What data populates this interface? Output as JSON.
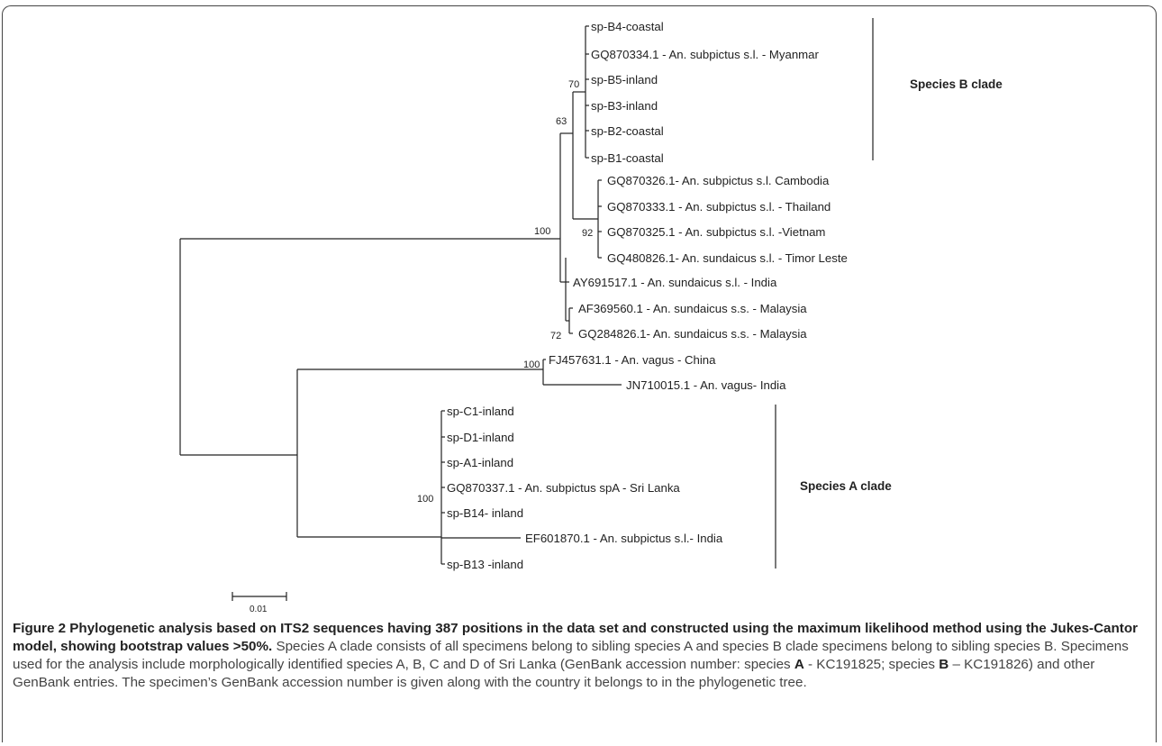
{
  "tree": {
    "leaves": [
      "sp-B4-coastal",
      "GQ870334.1 - An. subpictus s.l. - Myanmar",
      "sp-B5-inland",
      "sp-B3-inland",
      "sp-B2-coastal",
      "sp-B1-coastal",
      "GQ870326.1- An. subpictus s.l. Cambodia",
      "GQ870333.1 - An. subpictus s.l. - Thailand",
      "GQ870325.1 - An. subpictus s.l. -Vietnam",
      "GQ480826.1- An. sundaicus s.l. - Timor Leste",
      "AY691517.1 - An. sundaicus s.l. - India",
      "AF369560.1 - An. sundaicus s.s. - Malaysia",
      "GQ284826.1- An. sundaicus s.s. - Malaysia",
      "FJ457631.1 - An. vagus - China",
      "JN710015.1 - An. vagus- India",
      "sp-C1-inland",
      "sp-D1-inland",
      "sp-A1-inland",
      "GQ870337.1 - An. subpictus spA - Sri Lanka",
      "sp-B14- inland",
      "EF601870.1 - An. subpictus s.l.- India",
      "sp-B13 -inland"
    ],
    "bootstrap": [
      "70",
      "63",
      "92",
      "100",
      "72",
      "100",
      "100"
    ],
    "clade_labels": [
      "Species B clade",
      "Species A clade"
    ],
    "scale_label": "0.01"
  },
  "caption": {
    "title": "Figure 2 Phylogenetic analysis based on ITS2 sequences having 387 positions in the data set and constructed using the maximum likelihood method using the Jukes-Cantor model, showing bootstrap values >50%.",
    "body_1": " Species A clade consists of all specimens belong to sibling species A and species B clade specimens belong to sibling species B. Specimens used for the analysis include morphologically identified species A, B, C and D of Sri Lanka (GenBank accession number: species ",
    "sp_a": "A",
    "body_2": " - KC191825; species ",
    "sp_b": "B",
    "body_3": " – KC191826) and other GenBank entries. The specimen’s GenBank accession number is given along with the country it belongs to in the phylogenetic tree."
  }
}
